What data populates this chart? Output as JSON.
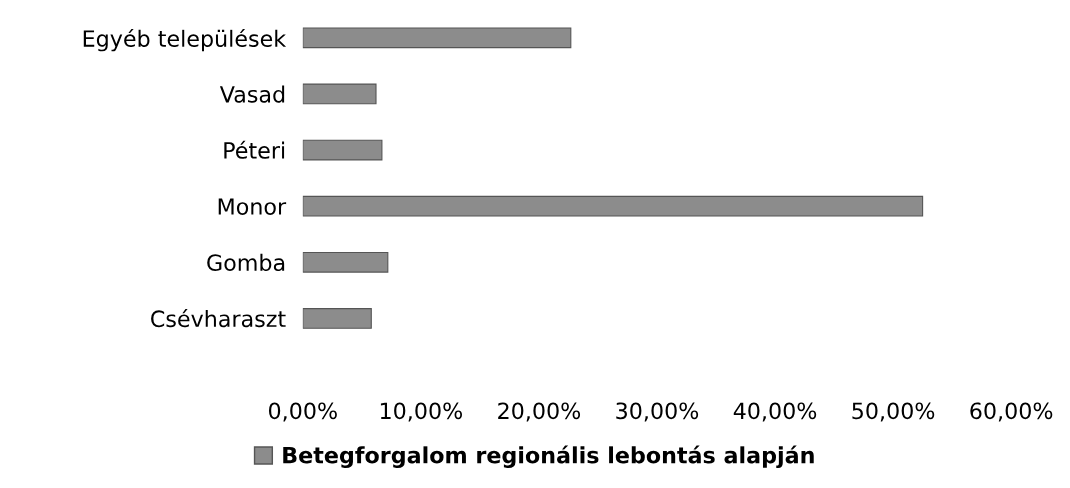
{
  "chart_data": {
    "type": "bar",
    "orientation": "horizontal",
    "categories": [
      "Egyéb települések",
      "Vasad",
      "Péteri",
      "Monor",
      "Gomba",
      "Csévharaszt"
    ],
    "series": [
      {
        "name": "Betegforgalom regionális lebontás alapján",
        "color": "#8c8c8c",
        "values": [
          22.7,
          6.2,
          6.7,
          52.5,
          7.2,
          5.8
        ]
      }
    ],
    "xlim": [
      0,
      60
    ],
    "xticks": [
      {
        "value": 0,
        "label": "0,00%"
      },
      {
        "value": 10,
        "label": "10,00%"
      },
      {
        "value": 20,
        "label": "20,00%"
      },
      {
        "value": 30,
        "label": "30,00%"
      },
      {
        "value": 40,
        "label": "40,00%"
      },
      {
        "value": 50,
        "label": "50,00%"
      },
      {
        "value": 60,
        "label": "60,00%"
      }
    ],
    "grid": false,
    "legend": "bottom"
  }
}
